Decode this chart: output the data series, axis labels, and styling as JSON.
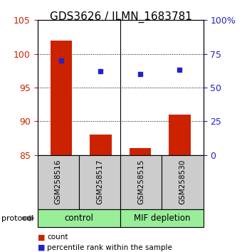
{
  "title": "GDS3626 / ILMN_1683781",
  "samples": [
    "GSM258516",
    "GSM258517",
    "GSM258515",
    "GSM258530"
  ],
  "count_values": [
    102,
    88,
    86,
    91
  ],
  "percentile_values": [
    70,
    62,
    60,
    63
  ],
  "left_ylim": [
    85,
    105
  ],
  "right_ylim": [
    0,
    100
  ],
  "left_yticks": [
    85,
    90,
    95,
    100,
    105
  ],
  "right_yticks": [
    0,
    25,
    50,
    75,
    100
  ],
  "right_yticklabels": [
    "0",
    "25",
    "50",
    "75",
    "100%"
  ],
  "bar_color": "#cc2200",
  "dot_color": "#2222cc",
  "group_labels": [
    "control",
    "MIF depletion"
  ],
  "group_color": "#99ee99",
  "group_ranges": [
    [
      0,
      2
    ],
    [
      2,
      4
    ]
  ],
  "protocol_label": "protocol",
  "legend_count": "count",
  "legend_percentile": "percentile rank within the sample",
  "title_fontsize": 11,
  "tick_fontsize": 9,
  "bar_width": 0.55,
  "background_color": "#ffffff",
  "sample_box_color": "#cccccc"
}
